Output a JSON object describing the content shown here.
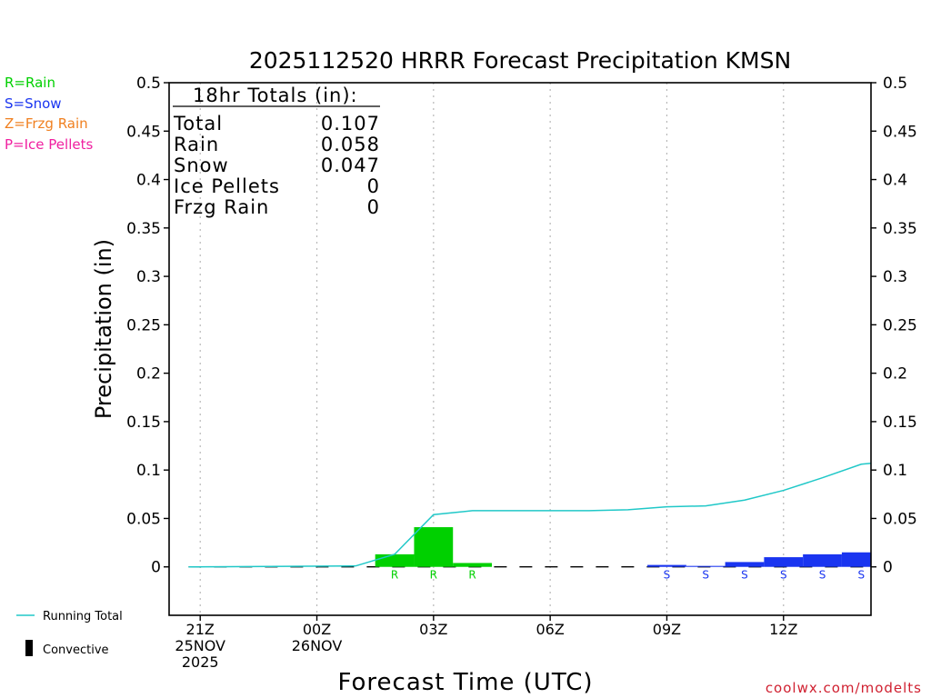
{
  "chart_data": {
    "type": "bar",
    "title": "2025112520 HRRR Forecast Precipitation KMSN",
    "xlabel": "Forecast Time (UTC)",
    "ylabel": "Precipitation (in)",
    "ylim": [
      -0.05,
      0.5
    ],
    "xlim": [
      -0.8,
      17.25
    ],
    "y_ticks": [
      0,
      0.05,
      0.1,
      0.15,
      0.2,
      0.25,
      0.3,
      0.35,
      0.4,
      0.45,
      0.5
    ],
    "y_tick_labels": [
      "0",
      "0.05",
      "0.1",
      "0.15",
      "0.2",
      "0.25",
      "0.3",
      "0.35",
      "0.4",
      "0.45",
      "0.5"
    ],
    "x_ticks": [
      {
        "hour": 0,
        "lines": [
          "21Z",
          "25NOV",
          "2025"
        ]
      },
      {
        "hour": 3,
        "lines": [
          "00Z",
          "26NOV"
        ]
      },
      {
        "hour": 6,
        "lines": [
          "03Z"
        ]
      },
      {
        "hour": 9,
        "lines": [
          "06Z"
        ]
      },
      {
        "hour": 12,
        "lines": [
          "09Z"
        ]
      },
      {
        "hour": 15,
        "lines": [
          "12Z"
        ]
      }
    ],
    "grid": true,
    "series": [
      {
        "name": "Precipitation",
        "bars": [
          {
            "hour": 5,
            "value": 0.013,
            "type": "R",
            "color": "#00d000"
          },
          {
            "hour": 6,
            "value": 0.041,
            "type": "R",
            "color": "#00d000"
          },
          {
            "hour": 7,
            "value": 0.004,
            "type": "R",
            "color": "#00d000"
          },
          {
            "hour": 12,
            "value": 0.002,
            "type": "S",
            "color": "#1a35f0"
          },
          {
            "hour": 13,
            "value": 0.001,
            "type": "S",
            "color": "#1a35f0"
          },
          {
            "hour": 14,
            "value": 0.005,
            "type": "S",
            "color": "#1a35f0"
          },
          {
            "hour": 15,
            "value": 0.01,
            "type": "S",
            "color": "#1a35f0"
          },
          {
            "hour": 16,
            "value": 0.013,
            "type": "S",
            "color": "#1a35f0"
          },
          {
            "hour": 17,
            "value": 0.015,
            "type": "S",
            "color": "#1a35f0"
          }
        ]
      },
      {
        "name": "Running Total",
        "color": "#20c8c8",
        "points": [
          [
            -0.3,
            0
          ],
          [
            4,
            0.001
          ],
          [
            5,
            0.013
          ],
          [
            6,
            0.054
          ],
          [
            7,
            0.058
          ],
          [
            8,
            0.058
          ],
          [
            9,
            0.058
          ],
          [
            10,
            0.058
          ],
          [
            11,
            0.059
          ],
          [
            12,
            0.062
          ],
          [
            13,
            0.063
          ],
          [
            14,
            0.069
          ],
          [
            15,
            0.079
          ],
          [
            16,
            0.092
          ],
          [
            17,
            0.106
          ],
          [
            17.25,
            0.107
          ]
        ]
      }
    ],
    "type_letter_colors": {
      "R": "#00d000",
      "S": "#1a35f0"
    }
  },
  "totals": {
    "header": "18hr Totals (in):",
    "rows": [
      {
        "label": "Total",
        "value": "0.107"
      },
      {
        "label": "Rain",
        "value": "0.058"
      },
      {
        "label": "Snow",
        "value": "0.047"
      },
      {
        "label": "Ice Pellets",
        "value": "0"
      },
      {
        "label": "Frzg Rain",
        "value": "0"
      }
    ]
  },
  "type_legend": [
    {
      "text": "R=Rain",
      "color": "#00d000"
    },
    {
      "text": "S=Snow",
      "color": "#1a35f0"
    },
    {
      "text": "Z=Frzg Rain",
      "color": "#f08020"
    },
    {
      "text": "P=Ice Pellets",
      "color": "#f020a0"
    }
  ],
  "bottom_legend": {
    "running_total": "Running Total",
    "convective": "Convective"
  },
  "credit": "coolwx.com/modelts",
  "colors": {
    "credit": "#d02030",
    "running_total": "#20c8c8"
  }
}
